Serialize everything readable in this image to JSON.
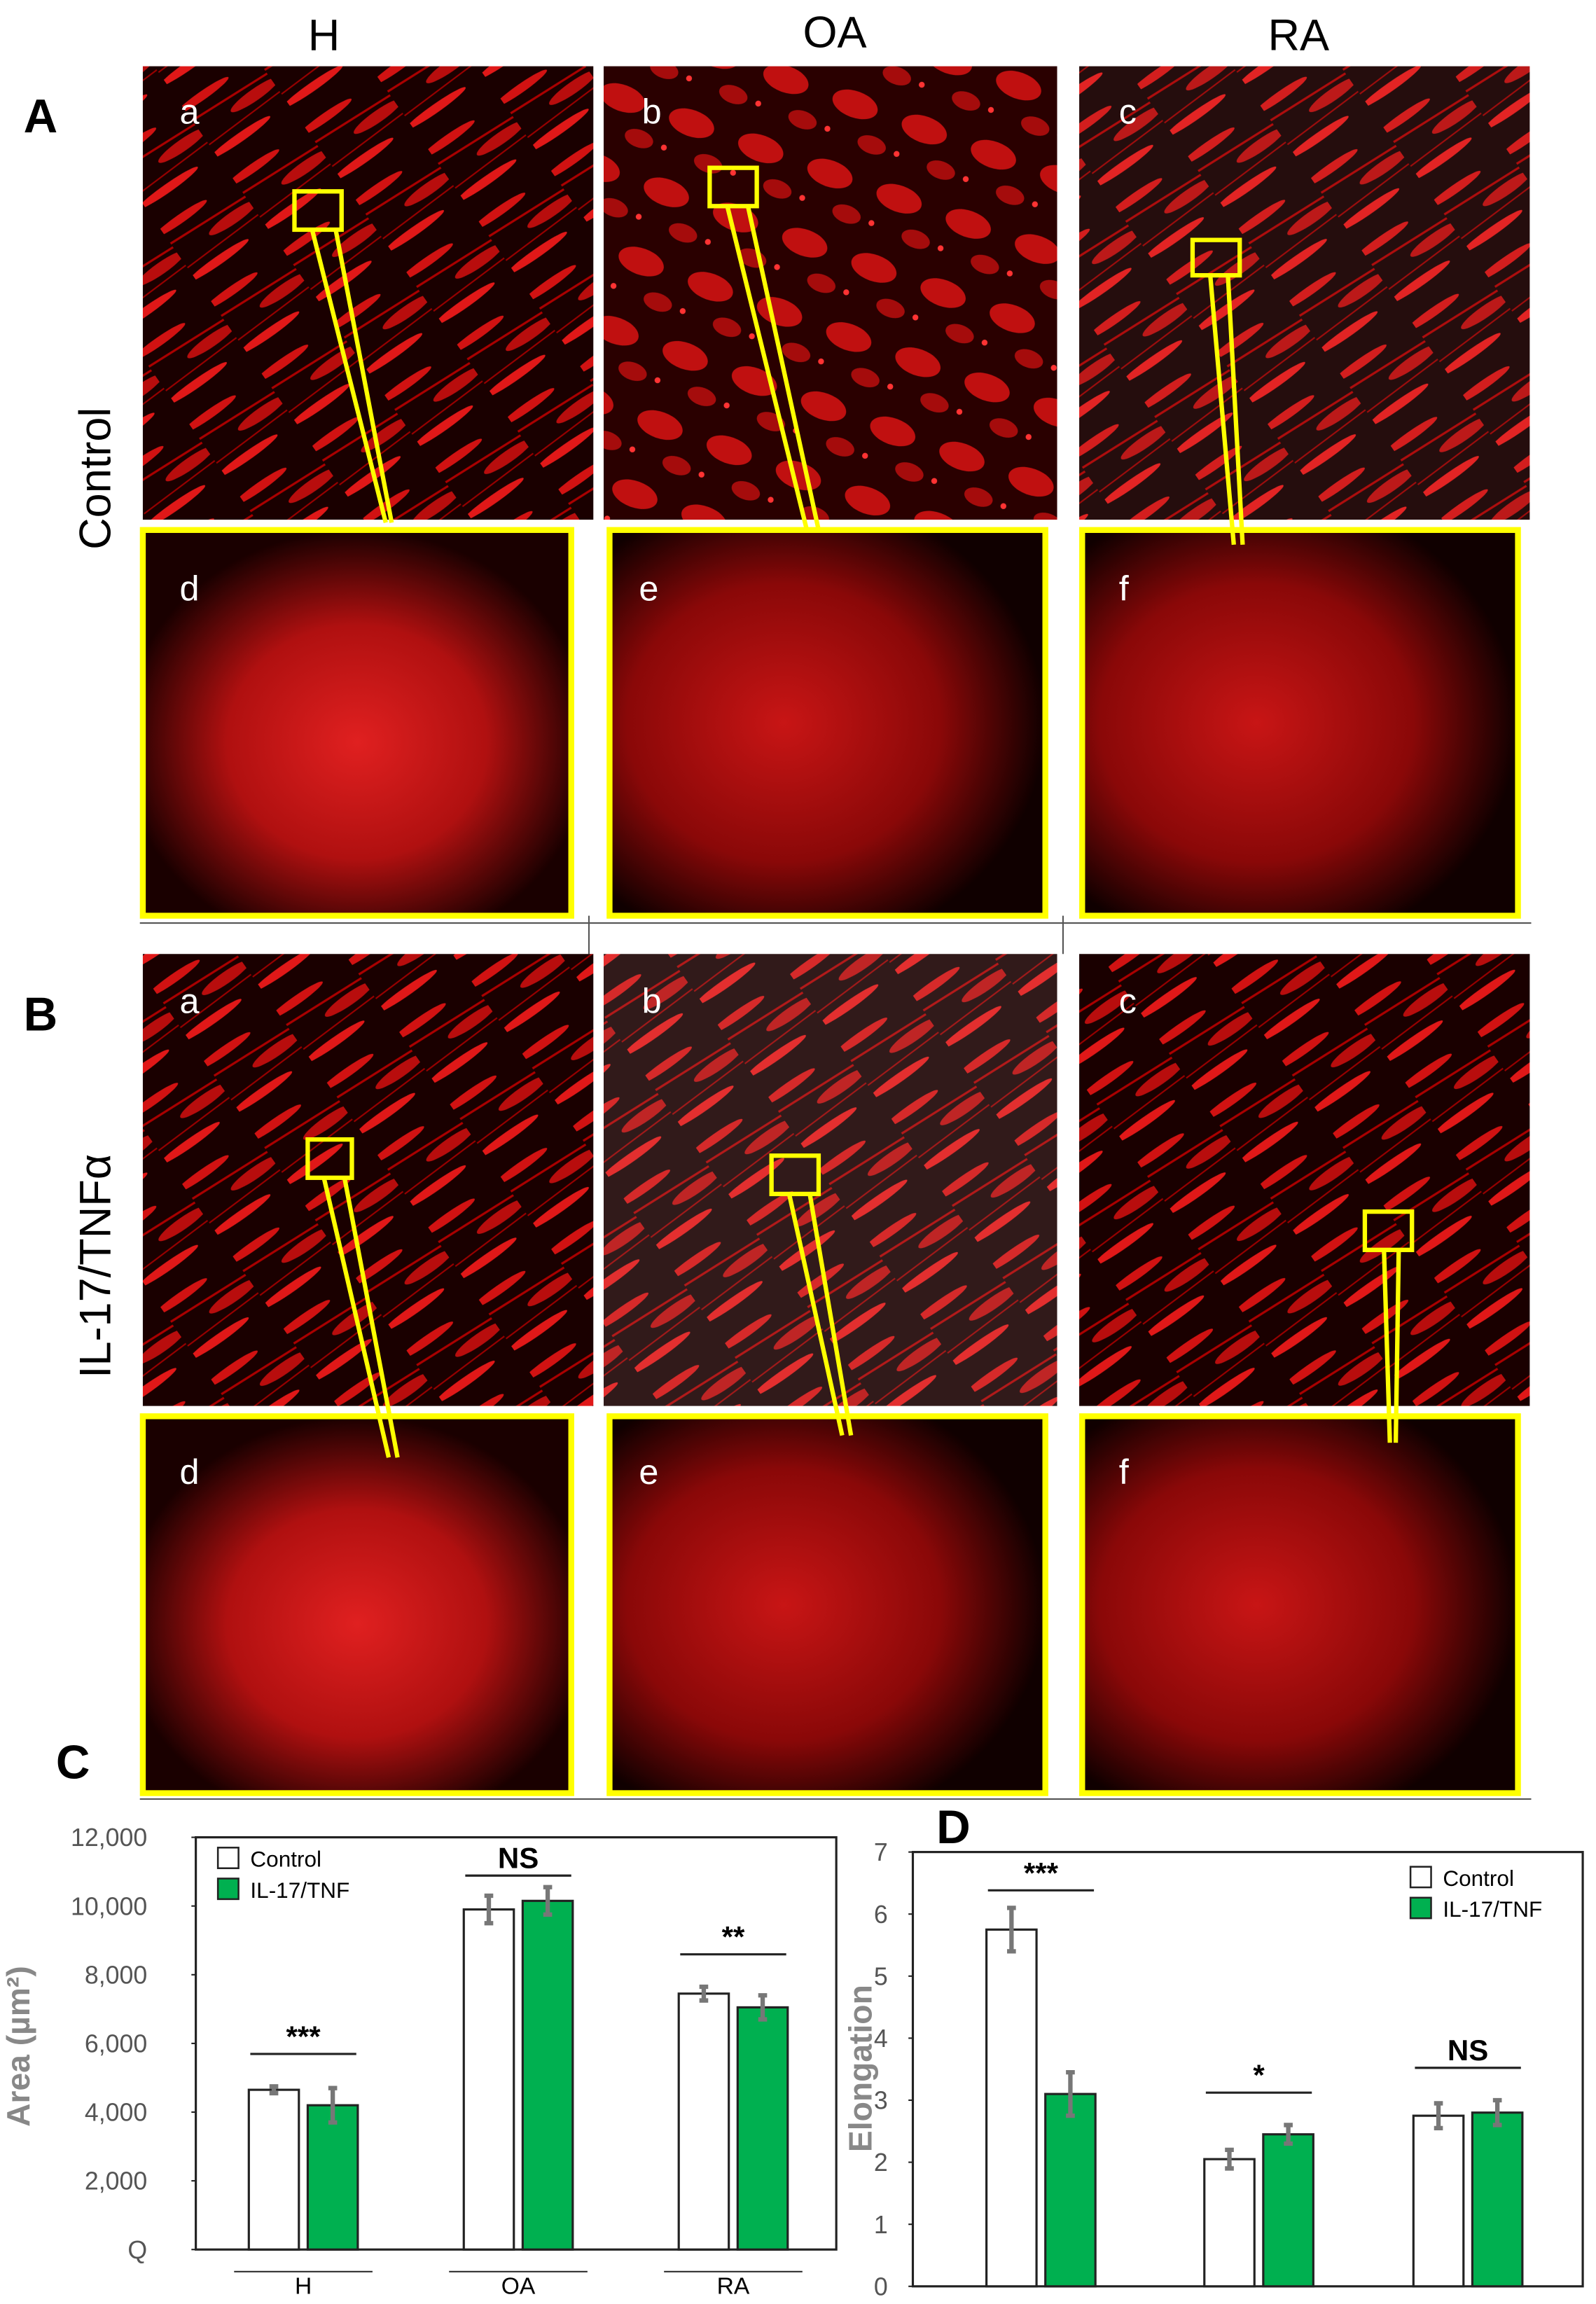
{
  "figure": {
    "columns": [
      "H",
      "OA",
      "RA"
    ],
    "rows": [
      "Control",
      "IL-17/TNFα"
    ],
    "panel_letters": [
      "A",
      "B",
      "C",
      "D"
    ],
    "sub_labels": [
      "a",
      "b",
      "c",
      "d",
      "e",
      "f"
    ]
  },
  "chart_data": [
    {
      "type": "bar",
      "y_label": "Area (µm²)",
      "categories": [
        "H",
        "OA",
        "RA"
      ],
      "series": [
        {
          "name": "Control",
          "color": "#ffffff",
          "values": [
            4650,
            9900,
            7450
          ],
          "errors": [
            100,
            400,
            200
          ]
        },
        {
          "name": "IL-17/TNF",
          "color": "#00b050",
          "values": [
            4200,
            10150,
            7050
          ],
          "errors": [
            500,
            400,
            350
          ]
        }
      ],
      "significance": [
        "***",
        "NS",
        "**"
      ],
      "ylim": [
        0,
        12000
      ],
      "yticks": [
        {
          "value": 0,
          "label": "Q"
        },
        {
          "value": 2000,
          "label": "2,000"
        },
        {
          "value": 4000,
          "label": "4,000"
        },
        {
          "value": 6000,
          "label": "6,000"
        },
        {
          "value": 8000,
          "label": "8,000"
        },
        {
          "value": 10000,
          "label": "10,000"
        },
        {
          "value": 12000,
          "label": "12,000"
        }
      ],
      "grid": false,
      "legend": "upper left"
    },
    {
      "type": "bar",
      "y_label": "Elongation",
      "categories": [
        "H",
        "OA",
        "RA"
      ],
      "series": [
        {
          "name": "Control",
          "color": "#ffffff",
          "values": [
            5.75,
            2.05,
            2.75
          ],
          "errors": [
            0.35,
            0.15,
            0.2
          ]
        },
        {
          "name": "IL-17/TNF",
          "color": "#00b050",
          "values": [
            3.1,
            2.45,
            2.8
          ],
          "errors": [
            0.35,
            0.15,
            0.2
          ]
        }
      ],
      "significance": [
        "***",
        "*",
        "NS"
      ],
      "ylim": [
        0,
        7
      ],
      "yticks": [
        0,
        1,
        2,
        3,
        4,
        5,
        6,
        7
      ],
      "grid": false,
      "legend": "upper right"
    }
  ]
}
